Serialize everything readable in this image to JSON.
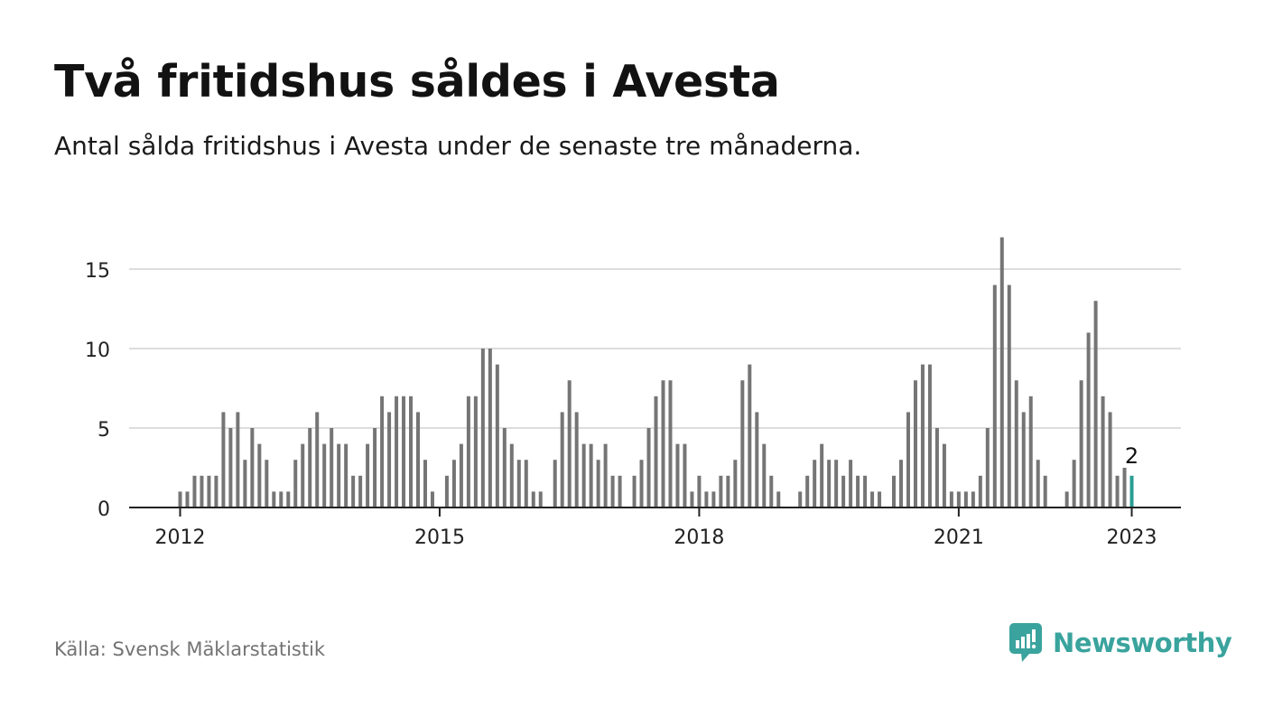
{
  "header": {
    "title": "Två fritidshus såldes i Avesta",
    "subtitle": "Antal sålda fritidshus i Avesta under de senaste tre månaderna."
  },
  "footer": {
    "source": "Källa: Svensk Mäklarstatistik",
    "brand": "Newsworthy"
  },
  "colors": {
    "bar": "#757575",
    "highlight": "#2a9d94",
    "grid": "#dddddd",
    "axis": "#222222",
    "brand": "#3aa39d"
  },
  "icons": {
    "brand_logo": "chart-speech-bubble-icon"
  },
  "chart_data": {
    "type": "bar",
    "x_start": "2012-01",
    "x_unit": "month",
    "values": [
      1,
      1,
      2,
      2,
      2,
      2,
      6,
      5,
      6,
      3,
      5,
      4,
      3,
      1,
      1,
      1,
      3,
      4,
      5,
      6,
      4,
      5,
      4,
      4,
      2,
      2,
      4,
      5,
      7,
      6,
      7,
      7,
      7,
      6,
      3,
      1,
      0,
      2,
      3,
      4,
      7,
      7,
      10,
      10,
      9,
      5,
      4,
      3,
      3,
      1,
      1,
      0,
      3,
      6,
      8,
      6,
      4,
      4,
      3,
      4,
      2,
      2,
      0,
      2,
      3,
      5,
      7,
      8,
      8,
      4,
      4,
      1,
      2,
      1,
      1,
      2,
      2,
      3,
      8,
      9,
      6,
      4,
      2,
      1,
      0,
      0,
      1,
      2,
      3,
      4,
      3,
      3,
      2,
      3,
      2,
      2,
      1,
      1,
      0,
      2,
      3,
      6,
      8,
      9,
      9,
      5,
      4,
      1,
      1,
      1,
      1,
      2,
      5,
      14,
      17,
      14,
      8,
      6,
      7,
      3,
      2,
      0,
      0,
      1,
      3,
      8,
      11,
      13,
      7,
      6,
      2,
      2.5,
      2
    ],
    "highlight_label": "2",
    "xticks": [
      "2012",
      "2015",
      "2018",
      "2021",
      "2023"
    ],
    "yticks": [
      "0",
      "5",
      "10",
      "15"
    ],
    "ylim": [
      0,
      17
    ],
    "grid": true,
    "legend": "none"
  }
}
